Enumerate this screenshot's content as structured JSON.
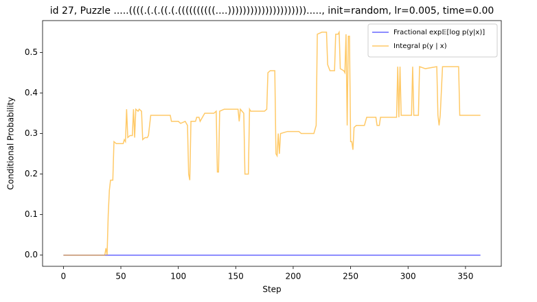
{
  "chart_data": {
    "type": "line",
    "title": "id 27, Puzzle .....((((.(.(.((.(.((((((((((....)))))))))))))))))))))....., init=random, lr=0.005, time=0.00",
    "x_label": "Step",
    "y_label": "Conditional Probability",
    "x": [
      0,
      36,
      37,
      38,
      39,
      40,
      41,
      43,
      44,
      46,
      52,
      53,
      54,
      55,
      56,
      58,
      60,
      61,
      62,
      63,
      65,
      66,
      68,
      69,
      71,
      73,
      74,
      76,
      93,
      94,
      100,
      102,
      106,
      108,
      109,
      110,
      111,
      115,
      116,
      118,
      119,
      121,
      123,
      131,
      133,
      134,
      135,
      136,
      140,
      150,
      152,
      153,
      154,
      157,
      158,
      161,
      162,
      163,
      175,
      177,
      178,
      180,
      184,
      185,
      186,
      187,
      188,
      189,
      195,
      205,
      207,
      218,
      220,
      221,
      225,
      229,
      230,
      232,
      236,
      237,
      239,
      240,
      241,
      244,
      245,
      246,
      247,
      248,
      249,
      250,
      251,
      252,
      253,
      255,
      262,
      264,
      272,
      273,
      275,
      276,
      290,
      291,
      292,
      293,
      294,
      303,
      304,
      305,
      309,
      310,
      315,
      325,
      326,
      327,
      328,
      330,
      344,
      345,
      363
    ],
    "series": [
      {
        "name": "Fractional exp𝔼[log p(y|x)]",
        "color": "#0000ff",
        "values": [
          0,
          0,
          0,
          0,
          0,
          0,
          0,
          0,
          0,
          0,
          0,
          0,
          0,
          0,
          0,
          0,
          0,
          0,
          0,
          0,
          0,
          0,
          0,
          0,
          0,
          0,
          0,
          0,
          0,
          0,
          0,
          0,
          0,
          0,
          0,
          0,
          0,
          0,
          0,
          0,
          0,
          0,
          0,
          0,
          0,
          0,
          0,
          0,
          0,
          0,
          0,
          0,
          0,
          0,
          0,
          0,
          0,
          0,
          0,
          0,
          0,
          0,
          0,
          0,
          0,
          0,
          0,
          0,
          0,
          0,
          0,
          0,
          0,
          0,
          0,
          0,
          0,
          0,
          0,
          0,
          0,
          0,
          0,
          0,
          0,
          0,
          0,
          0,
          0,
          0,
          0,
          0,
          0,
          0,
          0,
          0,
          0,
          0,
          0,
          0,
          0,
          0,
          0,
          0,
          0,
          0,
          0,
          0,
          0,
          0,
          0,
          0,
          0,
          0,
          0,
          0,
          0,
          0,
          0
        ]
      },
      {
        "name": "Integral p(y | x)",
        "color": "#ffa500",
        "values": [
          0,
          0,
          0.017,
          0,
          0.1,
          0.16,
          0.185,
          0.185,
          0.28,
          0.275,
          0.275,
          0.285,
          0.28,
          0.36,
          0.29,
          0.295,
          0.295,
          0.36,
          0.29,
          0.36,
          0.355,
          0.36,
          0.355,
          0.285,
          0.29,
          0.29,
          0.295,
          0.345,
          0.345,
          0.33,
          0.33,
          0.325,
          0.33,
          0.32,
          0.2,
          0.185,
          0.33,
          0.33,
          0.34,
          0.34,
          0.33,
          0.34,
          0.35,
          0.35,
          0.355,
          0.205,
          0.205,
          0.355,
          0.36,
          0.36,
          0.36,
          0.33,
          0.36,
          0.35,
          0.2,
          0.2,
          0.36,
          0.355,
          0.355,
          0.36,
          0.45,
          0.455,
          0.455,
          0.25,
          0.245,
          0.3,
          0.25,
          0.3,
          0.305,
          0.305,
          0.3,
          0.3,
          0.32,
          0.545,
          0.55,
          0.55,
          0.47,
          0.455,
          0.455,
          0.545,
          0.545,
          0.55,
          0.46,
          0.455,
          0.45,
          0.545,
          0.32,
          0.54,
          0.54,
          0.28,
          0.28,
          0.26,
          0.315,
          0.32,
          0.32,
          0.34,
          0.34,
          0.32,
          0.32,
          0.34,
          0.34,
          0.465,
          0.34,
          0.465,
          0.345,
          0.345,
          0.465,
          0.345,
          0.345,
          0.465,
          0.46,
          0.465,
          0.345,
          0.32,
          0.345,
          0.465,
          0.465,
          0.345,
          0.345
        ]
      }
    ],
    "alpha": 0.6,
    "xlim": [
      -18.15,
      381.15
    ],
    "xticks": [
      0,
      50,
      100,
      150,
      200,
      250,
      300,
      350
    ],
    "ylim": [
      -0.0276,
      0.5786
    ],
    "yticks": [
      {
        "value": 0,
        "label": "0.0"
      },
      0.1,
      0.2,
      0.3,
      0.4,
      0.5
    ],
    "grid": false,
    "legend": "upper right"
  }
}
